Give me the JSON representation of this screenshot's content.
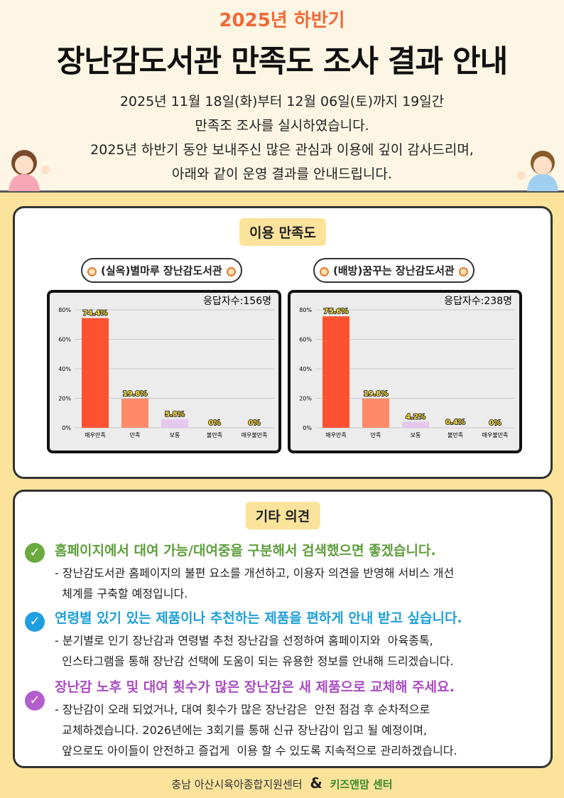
{
  "header": {
    "subtitle": "2025년 하반기",
    "title": "장난감도서관 만족도 조사 결과 안내",
    "intro": [
      "2025년 11월 18일(화)부터 12월 06일(토)까지 19일간",
      "만족조 조사를 실시하였습니다.",
      "2025년 하반기 동안 보내주신 많은 관심과 이용에 깊이 감사드리며,",
      "아래와 같이 운영 결과를 안내드립니다."
    ]
  },
  "satisfaction": {
    "heading": "이용 만족도"
  },
  "chart_data": [
    {
      "type": "bar",
      "title": "(실옥)별마루 장난감도서관",
      "annotation": "응답자수:156명",
      "categories": [
        "매우만족",
        "만족",
        "보통",
        "불만족",
        "매우불만족"
      ],
      "values": [
        74.4,
        19.8,
        5.8,
        0,
        0
      ],
      "value_labels": [
        "74.4%",
        "19.8%",
        "5.8%",
        "0%",
        "0%"
      ],
      "colors": [
        "#fd5232",
        "#ff8a6a",
        "#e4c8ee",
        "#e4c8ee",
        "#e4c8ee"
      ],
      "ylim": [
        0,
        80
      ],
      "yticks": [
        {
          "value": 0,
          "label": "0%"
        },
        {
          "value": 20,
          "label": "20%"
        },
        {
          "value": 40,
          "label": "40%"
        },
        {
          "value": 60,
          "label": "60%"
        },
        {
          "value": 80,
          "label": "80%"
        }
      ],
      "grid": true
    },
    {
      "type": "bar",
      "title": "(배방)꿈꾸는 장난감도서관",
      "annotation": "응답자수:238명",
      "categories": [
        "매우만족",
        "만족",
        "보통",
        "불만족",
        "매우불만족"
      ],
      "values": [
        75.6,
        19.8,
        4.2,
        0.4,
        0
      ],
      "value_labels": [
        "75.6%",
        "19.8%",
        "4.2%",
        "0.4%",
        "0%"
      ],
      "colors": [
        "#fd5232",
        "#ff8a6a",
        "#e4c8ee",
        "#e4c8ee",
        "#e4c8ee"
      ],
      "ylim": [
        0,
        80
      ],
      "yticks": [
        {
          "value": 0,
          "label": "0%"
        },
        {
          "value": 20,
          "label": "20%"
        },
        {
          "value": 40,
          "label": "40%"
        },
        {
          "value": 60,
          "label": "60%"
        },
        {
          "value": 80,
          "label": "80%"
        }
      ],
      "grid": true
    }
  ],
  "opinions": {
    "heading": "기타 의견",
    "items": [
      {
        "question": "홈페이지에서  대여 가능/대여중을 구분해서 검색했으면 좋겠습니다.",
        "answer": [
          "- 장난감도서관 홈페이지의 불편 요소를 개선하고, 이용자 의견을 반영해 서비스 개선",
          "  체계를 구축할 예정입니다."
        ]
      },
      {
        "question": "연령별 있기 있는 제품이나 추천하는 제품을 편하게 안내 받고 싶습니다.",
        "answer": [
          "- 분기별로 인기 장난감과 연령별 추천 장난감을 선정하여 홈페이지와  아육종톡,",
          "  인스타그램을 통해 장난감 선택에 도움이 되는 유용한 정보를 안내해 드리겠습니다."
        ]
      },
      {
        "question": "장난감 노후 및 대여 횟수가 많은 장난감은 새 제품으로 교체해 주세요.",
        "answer": [
          "- 장난감이 오래 되었거나, 대여 횟수가 많은 장난감은  안전 점검 후 순차적으로",
          "  교체하겠습니다. 2026년에는 3회기를 통해 신규 장난감이 입고 될 예정이며,",
          "  앞으로도 아이들이 안전하고 즐겁게  이용 할 수 있도록 지속적으로 관리하겠습니다."
        ]
      }
    ]
  },
  "footer": {
    "org": "충남 아산시육아종합지원센터",
    "amp": "&",
    "center": "키즈앤맘 센터"
  }
}
